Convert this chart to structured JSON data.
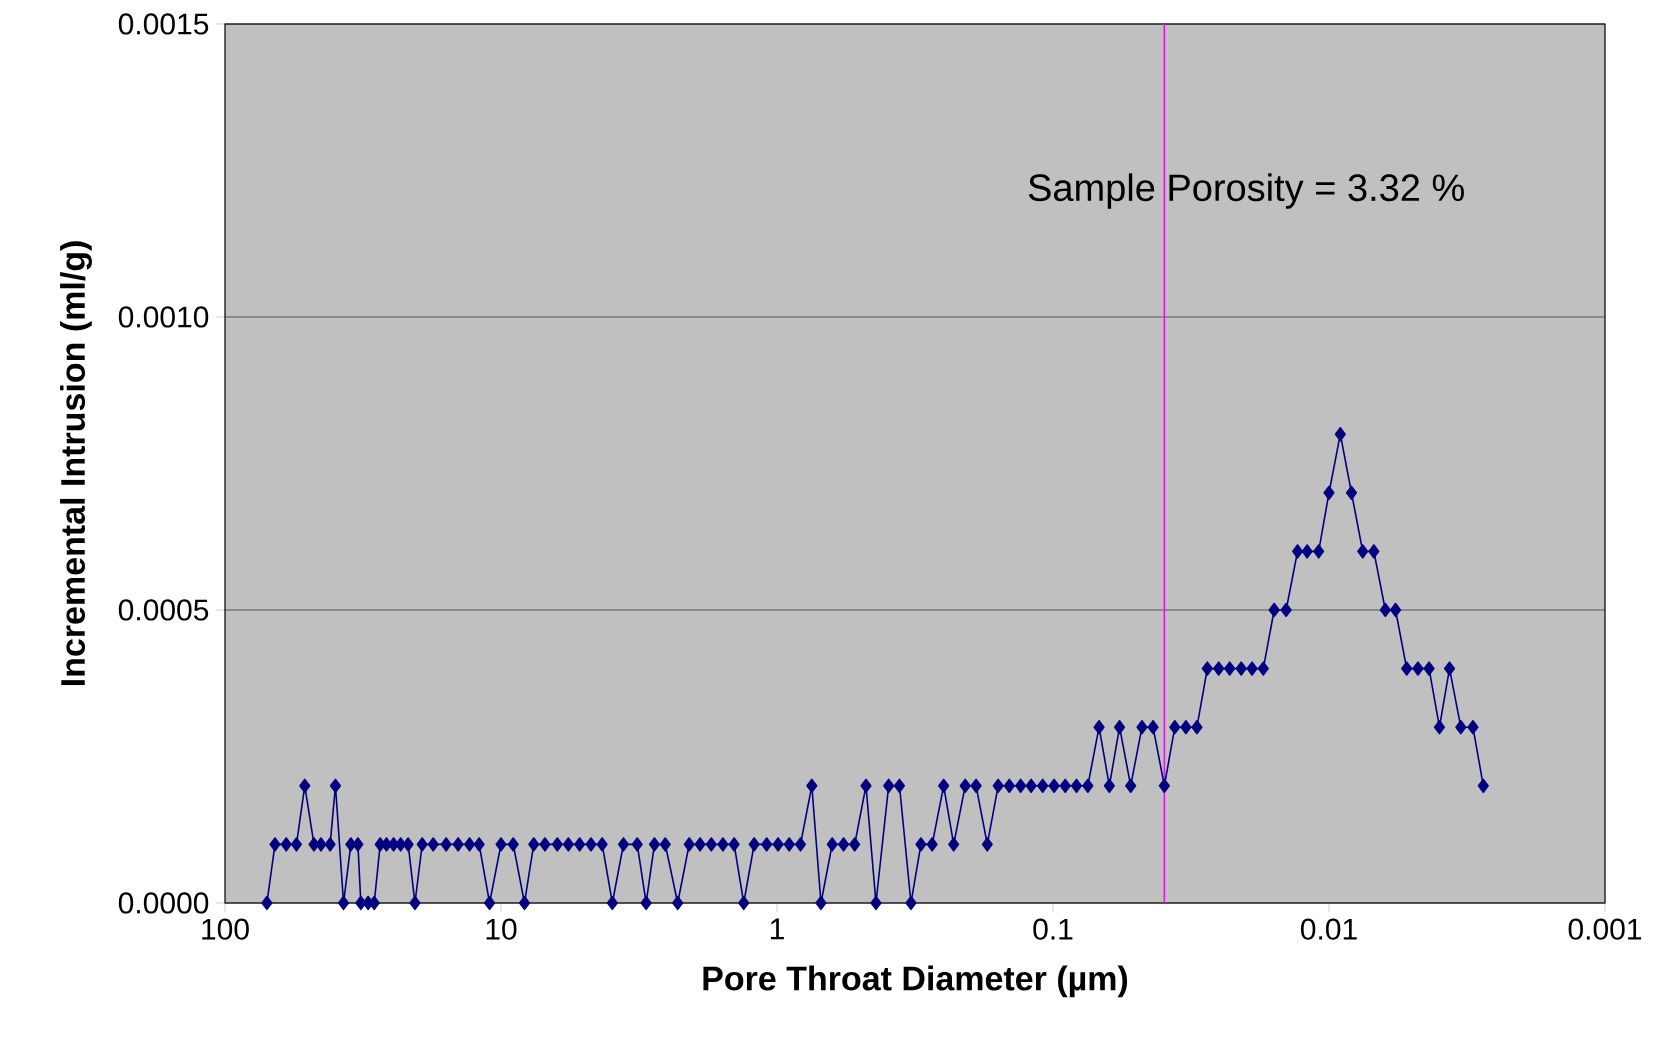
{
  "chart_data": {
    "type": "line",
    "xlabel": "Pore Throat Diameter (µm)",
    "ylabel": "Incremental Intrusion (ml/g)",
    "annotations": [
      "Sample Porosity = 3.32 %"
    ],
    "log": "x",
    "xlim": [
      100,
      0.001
    ],
    "xticks": [
      100,
      10,
      1,
      0.1,
      0.01,
      {
        "value": 0.001,
        "label": "0.001"
      }
    ],
    "ylim": [
      0,
      0.0015
    ],
    "yticks": [
      {
        "value": 0,
        "label": "0.0000"
      },
      {
        "value": 0.0005,
        "label": "0.0005"
      },
      {
        "value": 0.001,
        "label": "0.0010"
      },
      {
        "value": 0.0015,
        "label": "0.0015"
      }
    ],
    "grid": "y",
    "marker": "diamond",
    "line_style": "solid",
    "ref_lines": [
      {
        "axis": "x",
        "value": 0.0395,
        "color": "#ff00ff"
      }
    ],
    "series": [
      {
        "color": "#000080",
        "x": [
          70.5,
          65.9,
          60.0,
          55.1,
          51.4,
          47.6,
          44.9,
          41.6,
          39.8,
          37.2,
          35.0,
          33.0,
          32.2,
          30.3,
          28.8,
          27.4,
          26.0,
          24.5,
          23.1,
          21.7,
          20.5,
          19.3,
          17.6,
          15.8,
          14.3,
          13.0,
          12.0,
          11.0,
          10.0,
          9.03,
          8.22,
          7.61,
          6.93,
          6.25,
          5.7,
          5.19,
          4.72,
          4.3,
          3.95,
          3.6,
          3.21,
          2.98,
          2.78,
          2.54,
          2.29,
          2.08,
          1.9,
          1.73,
          1.57,
          1.43,
          1.32,
          1.21,
          1.09,
          0.991,
          0.903,
          0.822,
          0.748,
          0.693,
          0.631,
          0.574,
          0.523,
          0.476,
          0.438,
          0.394,
          0.36,
          0.327,
          0.301,
          0.274,
          0.249,
          0.229,
          0.208,
          0.19,
          0.173,
          0.158,
          0.144,
          0.131,
          0.12,
          0.109,
          0.0991,
          0.0903,
          0.0822,
          0.0748,
          0.0681,
          0.0625,
          0.0574,
          0.0523,
          0.0476,
          0.0434,
          0.0395,
          0.0362,
          0.033,
          0.0301,
          0.0276,
          0.0251,
          0.0229,
          0.0208,
          0.019,
          0.0173,
          0.0158,
          0.0143,
          0.013,
          0.012,
          0.0109,
          0.01,
          0.0091,
          0.00829,
          0.00755,
          0.00688,
          0.00625,
          0.00574,
          0.00523,
          0.00476,
          0.00434,
          0.00398,
          0.00366,
          0.00333,
          0.00301,
          0.00276
        ],
        "values": [
          0,
          0.0001,
          0.0001,
          0.0001,
          0.0002,
          0.0001,
          0.0001,
          0.0001,
          0.0002,
          0,
          0.0001,
          0.0001,
          0,
          0,
          0,
          0.0001,
          0.0001,
          0.0001,
          0.0001,
          0.0001,
          0,
          0.0001,
          0.0001,
          0.0001,
          0.0001,
          0.0001,
          0.0001,
          0,
          0.0001,
          0.0001,
          0,
          0.0001,
          0.0001,
          0.0001,
          0.0001,
          0.0001,
          0.0001,
          0.0001,
          0,
          0.0001,
          0.0001,
          0,
          0.0001,
          0.0001,
          0,
          0.0001,
          0.0001,
          0.0001,
          0.0001,
          0.0001,
          0,
          0.0001,
          0.0001,
          0.0001,
          0.0001,
          0.0001,
          0.0002,
          0,
          0.0001,
          0.0001,
          0.0001,
          0.0002,
          0,
          0.0002,
          0.0002,
          0,
          0.0001,
          0.0001,
          0.0002,
          0.0001,
          0.0002,
          0.0002,
          0.0001,
          0.0002,
          0.0002,
          0.0002,
          0.0002,
          0.0002,
          0.0002,
          0.0002,
          0.0002,
          0.0002,
          0.0003,
          0.0002,
          0.0003,
          0.0002,
          0.0003,
          0.0003,
          0.0002,
          0.0003,
          0.0003,
          0.0003,
          0.0004,
          0.0004,
          0.0004,
          0.0004,
          0.0004,
          0.0004,
          0.0005,
          0.0005,
          0.0006,
          0.0006,
          0.0006,
          0.0007,
          0.0008,
          0.0007,
          0.0006,
          0.0006,
          0.0005,
          0.0005,
          0.0004,
          0.0004,
          0.0004,
          0.0003,
          0.0004,
          0.0003,
          0.0003,
          0.0002
        ]
      }
    ]
  }
}
